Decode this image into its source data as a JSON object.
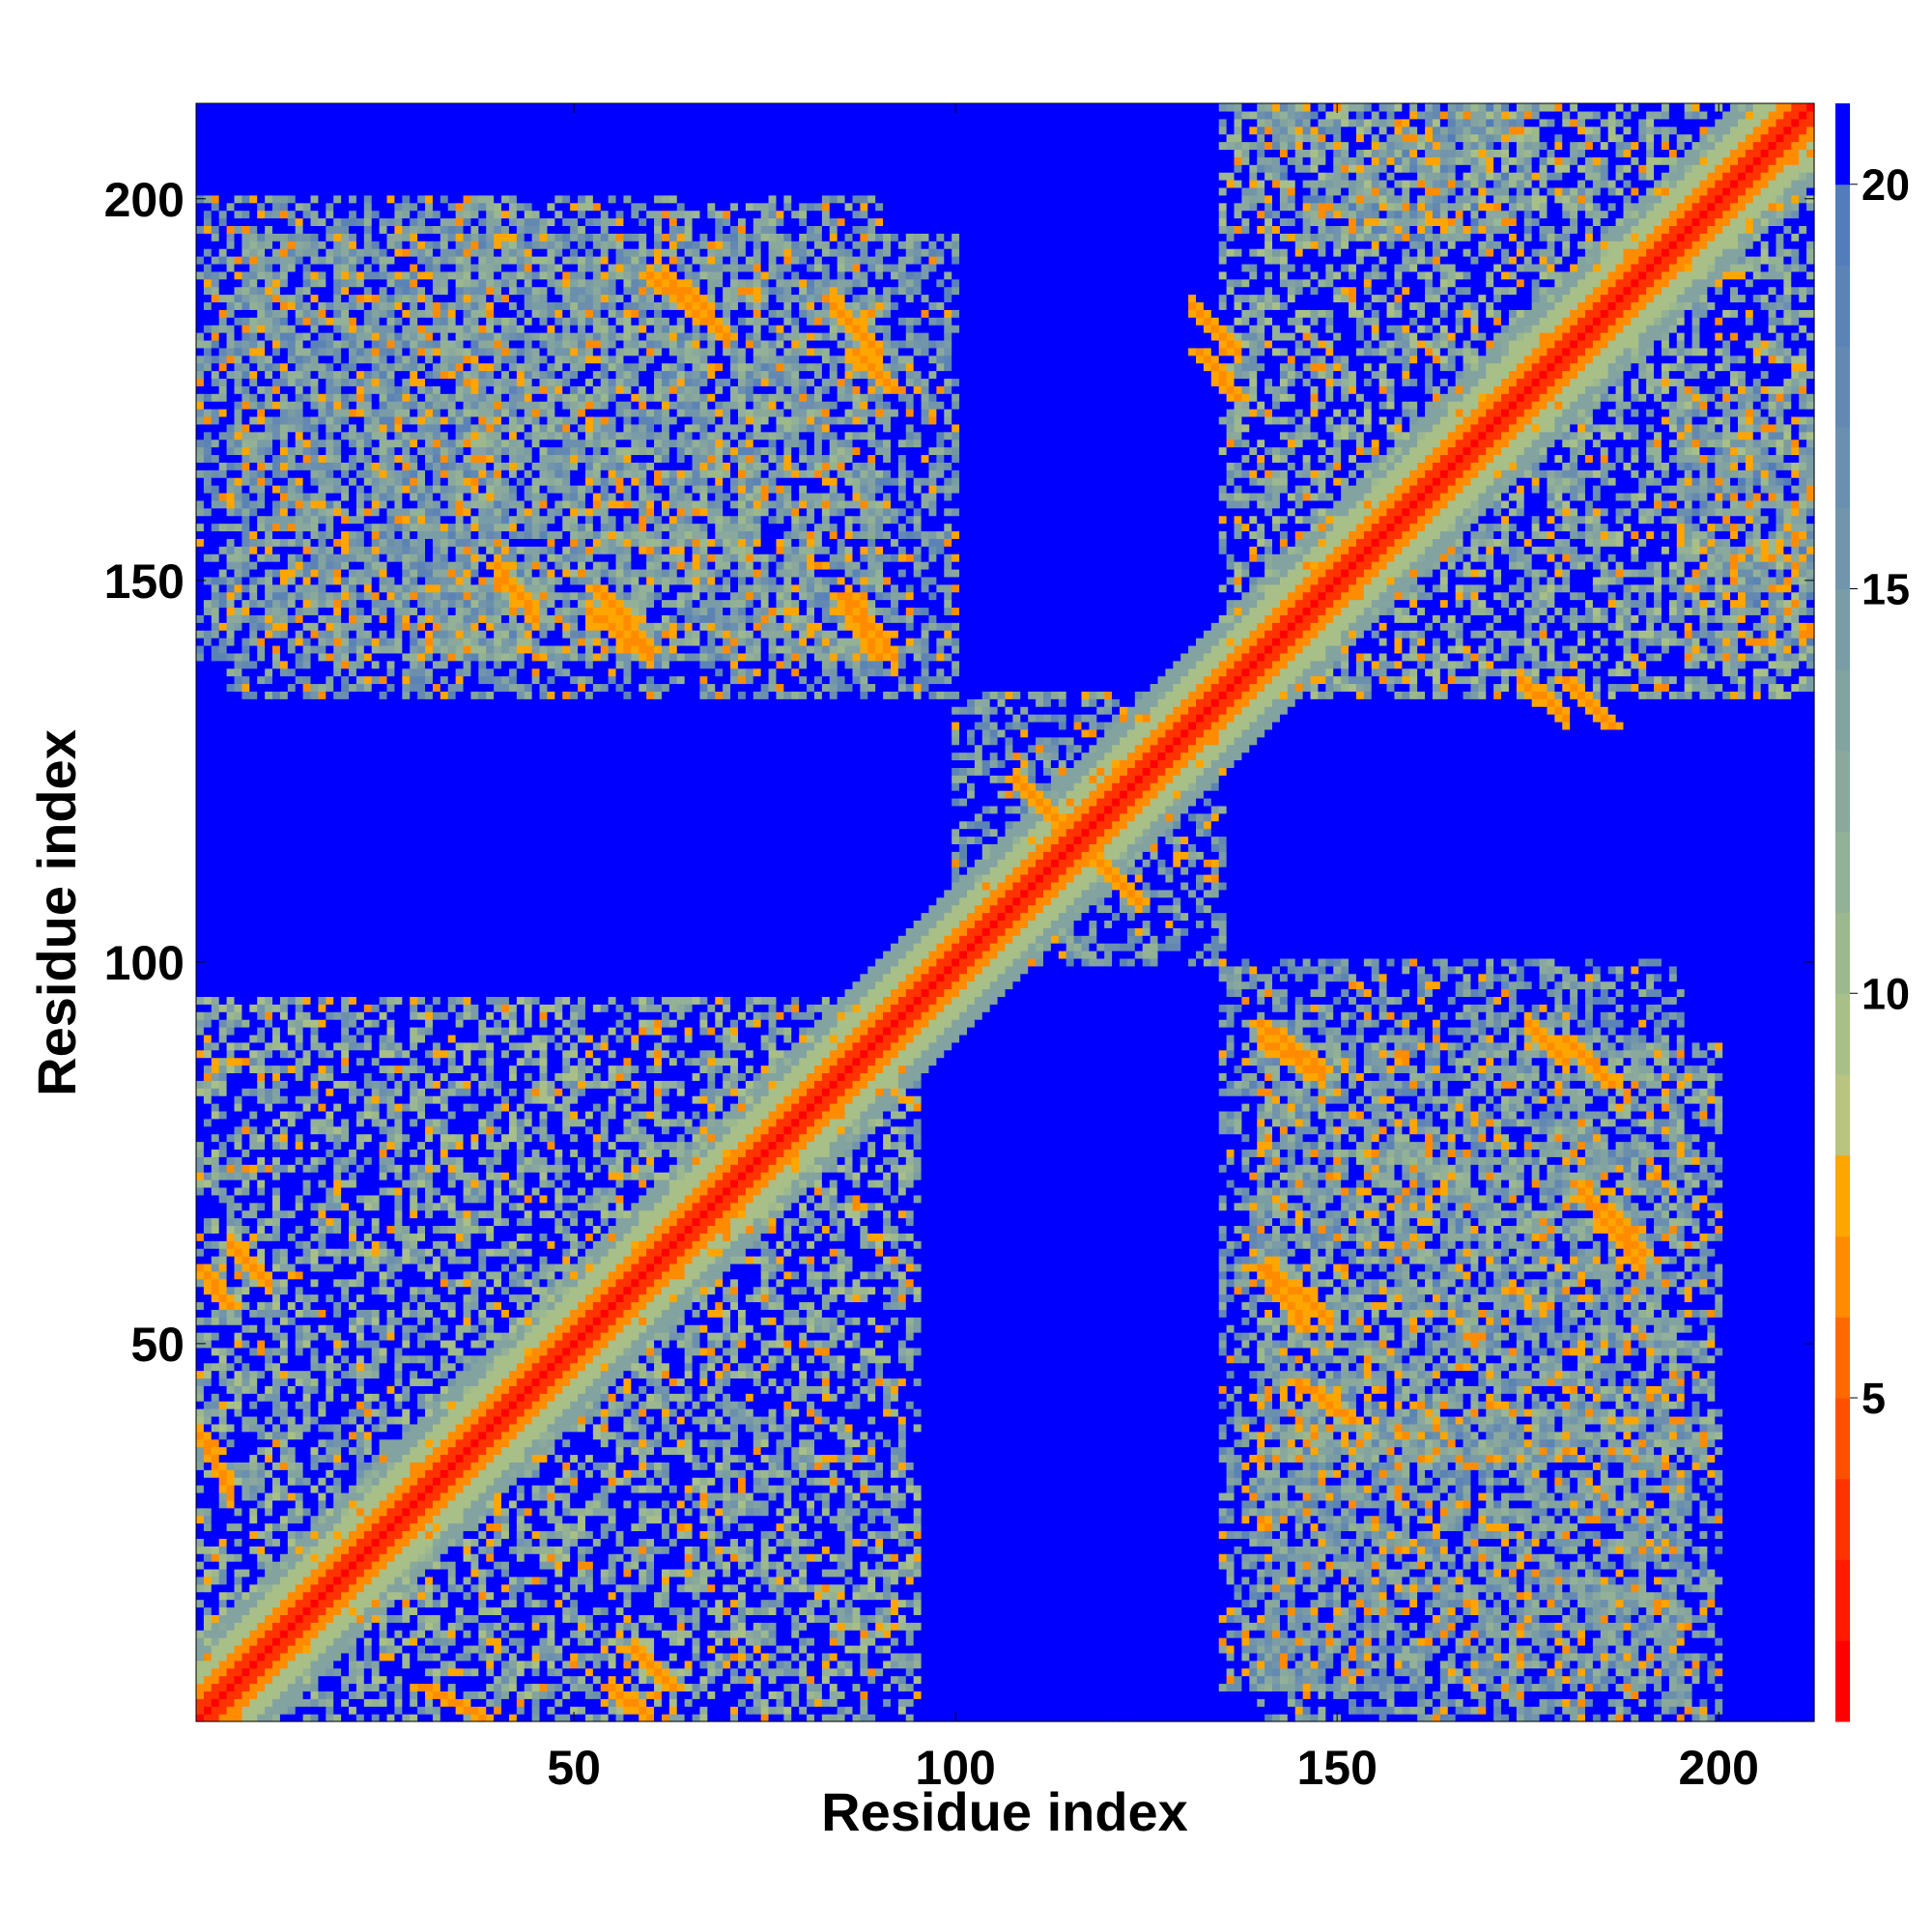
{
  "chart_data": {
    "type": "heatmap",
    "title": "",
    "xlabel": "Residue index",
    "ylabel": "Residue index",
    "n_residues": 212,
    "xlim": [
      1,
      212
    ],
    "ylim": [
      1,
      212
    ],
    "x_ticks": [
      50,
      100,
      150,
      200
    ],
    "y_ticks": [
      50,
      100,
      150,
      200
    ],
    "x_tick_labels": [
      "50",
      "100",
      "150",
      "200"
    ],
    "y_tick_labels": [
      "50",
      "100",
      "150",
      "200"
    ],
    "value_range": [
      1,
      21
    ],
    "colorbar": {
      "ticks": [
        5,
        10,
        15,
        20
      ],
      "tick_labels": [
        "5",
        "10",
        "15",
        "20"
      ],
      "levels": [
        {
          "min": 1,
          "max": 2,
          "color": "#ff0000"
        },
        {
          "min": 2,
          "max": 3,
          "color": "#ff1a00"
        },
        {
          "min": 3,
          "max": 4,
          "color": "#ff3300"
        },
        {
          "min": 4,
          "max": 5,
          "color": "#ff5000"
        },
        {
          "min": 5,
          "max": 6,
          "color": "#ff6a00"
        },
        {
          "min": 6,
          "max": 7,
          "color": "#ff8c00"
        },
        {
          "min": 7,
          "max": 8,
          "color": "#ffa500"
        },
        {
          "min": 8,
          "max": 9,
          "color": "#b8c47f"
        },
        {
          "min": 9,
          "max": 10,
          "color": "#a9bf88"
        },
        {
          "min": 10,
          "max": 11,
          "color": "#9cb88e"
        },
        {
          "min": 11,
          "max": 12,
          "color": "#93b196"
        },
        {
          "min": 12,
          "max": 13,
          "color": "#8aa99c"
        },
        {
          "min": 13,
          "max": 14,
          "color": "#82a3a0"
        },
        {
          "min": 14,
          "max": 15,
          "color": "#7a9ca6"
        },
        {
          "min": 15,
          "max": 16,
          "color": "#7295ab"
        },
        {
          "min": 16,
          "max": 17,
          "color": "#6b8fae"
        },
        {
          "min": 17,
          "max": 18,
          "color": "#6389b2"
        },
        {
          "min": 18,
          "max": 19,
          "color": "#5b83b6"
        },
        {
          "min": 19,
          "max": 20,
          "color": "#537cba"
        },
        {
          "min": 20,
          "max": 21,
          "color": "#0000ff"
        }
      ]
    },
    "contact_blocks": [
      {
        "x": [
          1,
          95
        ],
        "y": [
          1,
          95
        ],
        "value": 13
      },
      {
        "x": [
          35,
          90
        ],
        "y": [
          140,
          200
        ],
        "value": 14
      },
      {
        "x": [
          140,
          200
        ],
        "y": [
          35,
          90
        ],
        "value": 14
      },
      {
        "x": [
          1,
          40
        ],
        "y": [
          140,
          200
        ],
        "value": 15
      },
      {
        "x": [
          140,
          200
        ],
        "y": [
          1,
          40
        ],
        "value": 15
      },
      {
        "x": [
          135,
          212
        ],
        "y": [
          135,
          212
        ],
        "value": 13
      },
      {
        "x": [
          135,
          195
        ],
        "y": [
          5,
          100
        ],
        "value": 15
      },
      {
        "x": [
          5,
          100
        ],
        "y": [
          135,
          195
        ],
        "value": 15
      },
      {
        "x": [
          100,
          135
        ],
        "y": [
          100,
          135
        ],
        "value": 15
      },
      {
        "x": [
          150,
          175
        ],
        "y": [
          195,
          212
        ],
        "value": 16
      },
      {
        "x": [
          195,
          212
        ],
        "y": [
          150,
          175
        ],
        "value": 16
      },
      {
        "x": [
          195,
          212
        ],
        "y": [
          140,
          170
        ],
        "value": 16
      },
      {
        "x": [
          140,
          170
        ],
        "y": [
          195,
          212
        ],
        "value": 16
      }
    ],
    "strong_contacts": [
      {
        "x": [
          108,
          124
        ],
        "y": [
          124,
          108
        ],
        "value": 6
      },
      {
        "x": [
          60,
          70
        ],
        "y": [
          190,
          182
        ],
        "value": 6
      },
      {
        "x": [
          87,
          92
        ],
        "y": [
          180,
          175
        ],
        "value": 6
      },
      {
        "x": [
          53,
          60
        ],
        "y": [
          149,
          141
        ],
        "value": 6
      },
      {
        "x": [
          85,
          90
        ],
        "y": [
          148,
          140
        ],
        "value": 6
      },
      {
        "x": [
          132,
          137
        ],
        "y": [
          180,
          174
        ],
        "value": 6
      },
      {
        "x": [
          180,
          186
        ],
        "y": [
          137,
          131
        ],
        "value": 6
      },
      {
        "x": [
          140,
          148
        ],
        "y": [
          92,
          86
        ],
        "value": 6
      },
      {
        "x": [
          180,
          186
        ],
        "y": [
          90,
          84
        ],
        "value": 6
      },
      {
        "x": [
          140,
          146
        ],
        "y": [
          60,
          52
        ],
        "value": 6
      },
      {
        "x": [
          185,
          190
        ],
        "y": [
          68,
          62
        ],
        "value": 6
      },
      {
        "x": [
          1,
          5
        ],
        "y": [
          60,
          55
        ],
        "value": 6
      },
      {
        "x": [
          30,
          38
        ],
        "y": [
          5,
          1
        ],
        "value": 6
      },
      {
        "x": [
          58,
          63
        ],
        "y": [
          10,
          5
        ],
        "value": 6
      },
      {
        "x": [
          145,
          152
        ],
        "y": [
          45,
          40
        ],
        "value": 6
      }
    ]
  }
}
